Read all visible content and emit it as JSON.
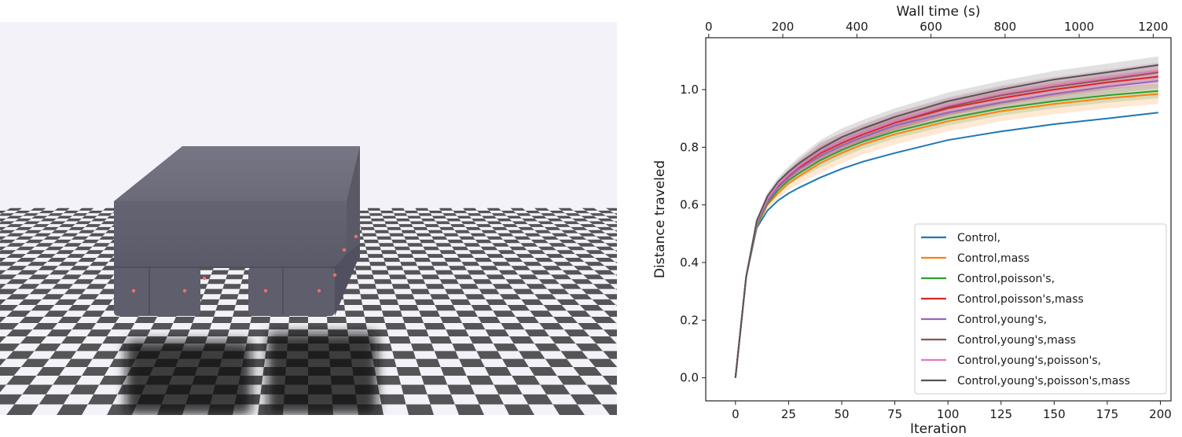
{
  "scene": {
    "floor_light": "#f2f2f8",
    "floor_dark": "#555558",
    "robot_color": "#6b6b7a",
    "marker_color": "#ff6a6a"
  },
  "chart_data": {
    "type": "line",
    "title": "",
    "xlabel": "Iteration",
    "x2label": "Wall time (s)",
    "ylabel": "Distance traveled",
    "xlim": [
      -14,
      205
    ],
    "ylim": [
      -0.08,
      1.18
    ],
    "x2lim": [
      -8,
      1248
    ],
    "xticks": [
      0,
      25,
      50,
      75,
      100,
      125,
      150,
      175,
      200
    ],
    "x2ticks": [
      0,
      200,
      400,
      600,
      800,
      1000,
      1200
    ],
    "yticks": [
      0.0,
      0.2,
      0.4,
      0.6,
      0.8,
      1.0
    ],
    "ytick_labels": [
      "0.0",
      "0.2",
      "0.4",
      "0.6",
      "0.8",
      "1.0"
    ],
    "legend_position": "lower-right",
    "grid": false,
    "x": [
      0,
      5,
      10,
      15,
      20,
      25,
      30,
      40,
      50,
      60,
      75,
      100,
      125,
      150,
      175,
      199
    ],
    "series": [
      {
        "name": "Control,",
        "color": "#1f77b4",
        "band": 0.0,
        "values": [
          0.0,
          0.35,
          0.52,
          0.58,
          0.615,
          0.64,
          0.66,
          0.695,
          0.725,
          0.75,
          0.78,
          0.825,
          0.855,
          0.88,
          0.9,
          0.92
        ]
      },
      {
        "name": "Control,mass",
        "color": "#ff7f0e",
        "band": 0.035,
        "values": [
          0.0,
          0.35,
          0.525,
          0.6,
          0.64,
          0.675,
          0.7,
          0.745,
          0.78,
          0.81,
          0.845,
          0.89,
          0.925,
          0.95,
          0.97,
          0.985
        ]
      },
      {
        "name": "Control,poisson's,",
        "color": "#2ca02c",
        "band": 0.025,
        "values": [
          0.0,
          0.35,
          0.53,
          0.605,
          0.65,
          0.685,
          0.71,
          0.755,
          0.79,
          0.82,
          0.855,
          0.9,
          0.935,
          0.96,
          0.98,
          0.995
        ]
      },
      {
        "name": "Control,poisson's,mass",
        "color": "#d62728",
        "band": 0.025,
        "values": [
          0.0,
          0.35,
          0.535,
          0.615,
          0.665,
          0.7,
          0.73,
          0.78,
          0.815,
          0.845,
          0.885,
          0.935,
          0.97,
          1.0,
          1.025,
          1.045
        ]
      },
      {
        "name": "Control,young's,",
        "color": "#9467bd",
        "band": 0.025,
        "values": [
          0.0,
          0.35,
          0.535,
          0.61,
          0.66,
          0.695,
          0.725,
          0.77,
          0.805,
          0.835,
          0.875,
          0.92,
          0.955,
          0.985,
          1.01,
          1.03
        ]
      },
      {
        "name": "Control,young's,mass",
        "color": "#8c564b",
        "band": 0.03,
        "values": [
          0.0,
          0.35,
          0.54,
          0.62,
          0.67,
          0.705,
          0.735,
          0.785,
          0.82,
          0.85,
          0.89,
          0.94,
          0.98,
          1.01,
          1.035,
          1.06
        ]
      },
      {
        "name": "Control,young's,poisson's,",
        "color": "#e377c2",
        "band": 0.03,
        "values": [
          0.0,
          0.35,
          0.54,
          0.62,
          0.67,
          0.705,
          0.735,
          0.785,
          0.82,
          0.85,
          0.89,
          0.945,
          0.985,
          1.015,
          1.04,
          1.065
        ]
      },
      {
        "name": "Control,young's,poisson's,mass",
        "color": "#555555",
        "band": 0.03,
        "values": [
          0.0,
          0.35,
          0.545,
          0.63,
          0.68,
          0.715,
          0.745,
          0.795,
          0.835,
          0.865,
          0.905,
          0.96,
          1.0,
          1.035,
          1.06,
          1.085
        ]
      }
    ]
  }
}
